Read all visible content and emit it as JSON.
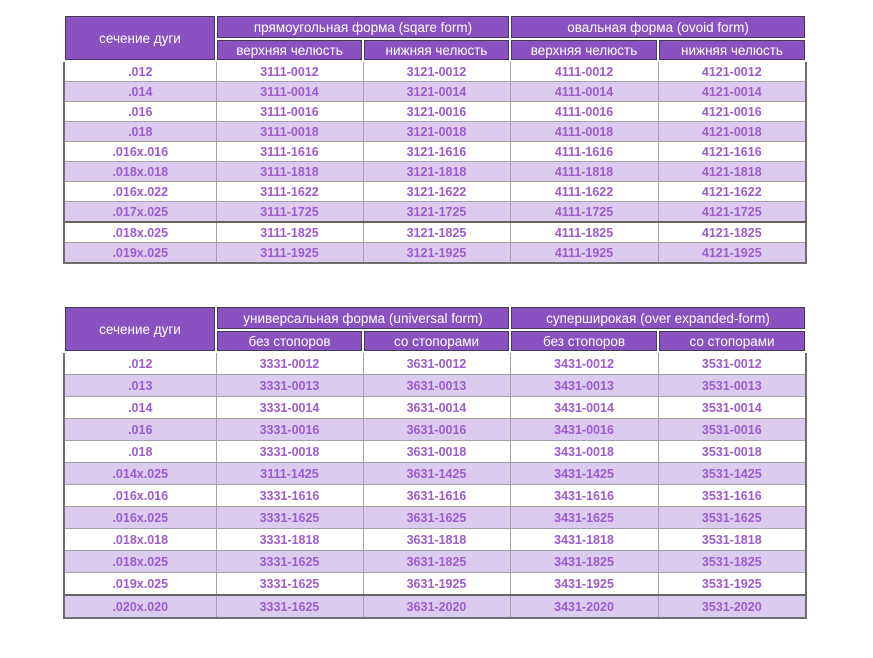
{
  "page": {
    "background": "#ffffff"
  },
  "colors": {
    "header_bg": "#8a51c0",
    "header_text": "#ffffff",
    "header_cell_outline": "#463a52",
    "body_text": "#9d5bcd",
    "stripe_bg": "#dccbee",
    "row_bg": "#ffffff",
    "grid_border": "#a3a3a3",
    "outer_border": "#6e6e6e"
  },
  "tables": [
    {
      "id": "table1",
      "corner_label": "сечение дуги",
      "groups": [
        {
          "label": "прямоугольная форма (sqare form)",
          "subcolumns": [
            "верхняя челюсть",
            "нижняя челюсть"
          ]
        },
        {
          "label": "овальная форма (ovoid form)",
          "subcolumns": [
            "верхняя челюсть",
            "нижняя челюсть"
          ]
        }
      ],
      "rows": [
        {
          "section": ".012",
          "values": [
            "3111-0012",
            "3121-0012",
            "4111-0012",
            "4121-0012"
          ]
        },
        {
          "section": ".014",
          "values": [
            "3111-0014",
            "3121-0014",
            "4111-0014",
            "4121-0014"
          ]
        },
        {
          "section": ".016",
          "values": [
            "3111-0016",
            "3121-0016",
            "4111-0016",
            "4121-0016"
          ]
        },
        {
          "section": ".018",
          "values": [
            "3111-0018",
            "3121-0018",
            "4111-0018",
            "4121-0018"
          ]
        },
        {
          "section": ".016x.016",
          "values": [
            "3111-1616",
            "3121-1616",
            "4111-1616",
            "4121-1616"
          ]
        },
        {
          "section": ".018x.018",
          "values": [
            "3111-1818",
            "3121-1818",
            "4111-1818",
            "4121-1818"
          ]
        },
        {
          "section": ".016x.022",
          "values": [
            "3111-1622",
            "3121-1622",
            "4111-1622",
            "4121-1622"
          ]
        },
        {
          "section": ".017x.025",
          "values": [
            "3111-1725",
            "3121-1725",
            "4111-1725",
            "4121-1725"
          ]
        },
        {
          "section": ".018x.025",
          "values": [
            "3111-1825",
            "3121-1825",
            "4111-1825",
            "4121-1825"
          ]
        },
        {
          "section": ".019x.025",
          "values": [
            "3111-1925",
            "3121-1925",
            "4111-1925",
            "4121-1925"
          ]
        }
      ]
    },
    {
      "id": "table2",
      "corner_label": "сечение дуги",
      "groups": [
        {
          "label": "универсальная форма (universal form)",
          "subcolumns": [
            "без стопоров",
            "со стопорами"
          ]
        },
        {
          "label": "суперширокая (over expanded-form)",
          "subcolumns": [
            "без стопоров",
            "со стопорами"
          ]
        }
      ],
      "rows": [
        {
          "section": ".012",
          "values": [
            "3331-0012",
            "3631-0012",
            "3431-0012",
            "3531-0012"
          ]
        },
        {
          "section": ".013",
          "values": [
            "3331-0013",
            "3631-0013",
            "3431-0013",
            "3531-0013"
          ]
        },
        {
          "section": ".014",
          "values": [
            "3331-0014",
            "3631-0014",
            "3431-0014",
            "3531-0014"
          ]
        },
        {
          "section": ".016",
          "values": [
            "3331-0016",
            "3631-0016",
            "3431-0016",
            "3531-0016"
          ]
        },
        {
          "section": ".018",
          "values": [
            "3331-0018",
            "3631-0018",
            "3431-0018",
            "3531-0018"
          ]
        },
        {
          "section": ".014x.025",
          "values": [
            "3111-1425",
            "3631-1425",
            "3431-1425",
            "3531-1425"
          ]
        },
        {
          "section": ".016x.016",
          "values": [
            "3331-1616",
            "3631-1616",
            "3431-1616",
            "3531-1616"
          ]
        },
        {
          "section": ".016x.025",
          "values": [
            "3331-1625",
            "3631-1625",
            "3431-1625",
            "3531-1625"
          ]
        },
        {
          "section": ".018x.018",
          "values": [
            "3331-1818",
            "3631-1818",
            "3431-1818",
            "3531-1818"
          ]
        },
        {
          "section": ".018x.025",
          "values": [
            "3331-1625",
            "3631-1825",
            "3431-1825",
            "3531-1825"
          ]
        },
        {
          "section": ".019x.025",
          "values": [
            "3331-1625",
            "3631-1925",
            "3431-1925",
            "3531-1925"
          ]
        },
        {
          "section": ".020x.020",
          "values": [
            "3331-1625",
            "3631-2020",
            "3431-2020",
            "3531-2020"
          ]
        }
      ]
    }
  ]
}
